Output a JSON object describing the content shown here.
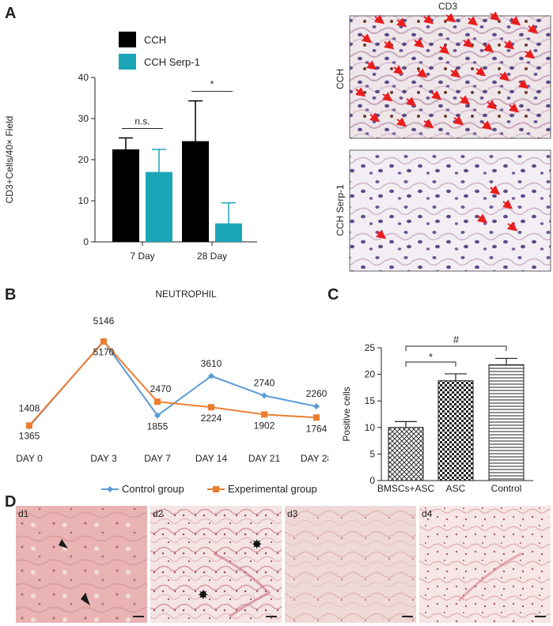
{
  "panels": {
    "a": "A",
    "b": "B",
    "c": "C",
    "d": "D"
  },
  "colors": {
    "cch": "#000000",
    "serp": "#1aa6b7",
    "control_line": "#5b9bd5",
    "experimental_line": "#ed7d31",
    "arrow": "#e81e1e"
  },
  "chart_data": [
    {
      "type": "bar",
      "panel": "A",
      "ylabel": "CD3+Cells/40× Field",
      "categories": [
        "7 Day",
        "28 Day"
      ],
      "ylim": [
        0,
        40
      ],
      "yticks": [
        "0",
        "10",
        "20",
        "30",
        "40"
      ],
      "legend": [
        "CCH",
        "CCH Serp-1"
      ],
      "legend_position": "top-left",
      "series": [
        {
          "name": "CCH",
          "values": [
            22.5,
            24.5
          ],
          "errors": [
            2.8,
            9.8
          ]
        },
        {
          "name": "CCH Serp-1",
          "values": [
            17,
            4.5
          ],
          "errors": [
            5.5,
            5.0
          ]
        }
      ],
      "annotations": [
        "n.s.",
        "*"
      ]
    },
    {
      "type": "line",
      "panel": "B",
      "title": "NEUTROPHIL",
      "categories": [
        "DAY 0",
        "DAY 3",
        "DAY 7",
        "DAY 14",
        "DAY 21",
        "DAY 28"
      ],
      "ylim": [
        1000,
        5500
      ],
      "legend": [
        "Control group",
        "Experimental group"
      ],
      "legend_position": "bottom",
      "series": [
        {
          "name": "Control group",
          "values": [
            1365,
            5170,
            1855,
            3610,
            2740,
            2260
          ],
          "labels": [
            "1365",
            "5170",
            "1855",
            "3610",
            "2740",
            "2260"
          ]
        },
        {
          "name": "Experimental group",
          "values": [
            1408,
            5146,
            2470,
            2224,
            1902,
            1764
          ],
          "labels": [
            "1408",
            "5146",
            "2470",
            "2224",
            "1902",
            "1764"
          ]
        }
      ]
    },
    {
      "type": "bar",
      "panel": "C",
      "ylabel": "Positive cells",
      "categories": [
        "BMSCs+ASC",
        "ASC",
        "Control"
      ],
      "ylim": [
        0,
        25
      ],
      "yticks": [
        "0",
        "5",
        "10",
        "15",
        "20",
        "25"
      ],
      "values": [
        10,
        18.8,
        21.8
      ],
      "errors": [
        1.1,
        1.3,
        1.2
      ],
      "annotations": [
        "*",
        "#"
      ]
    }
  ],
  "micrographs": {
    "cd3_title": "CD3",
    "cch_label": "CCH",
    "serp_label": "CCH Serp-1",
    "d_labels": [
      "d1",
      "d2",
      "d3",
      "d4"
    ]
  }
}
